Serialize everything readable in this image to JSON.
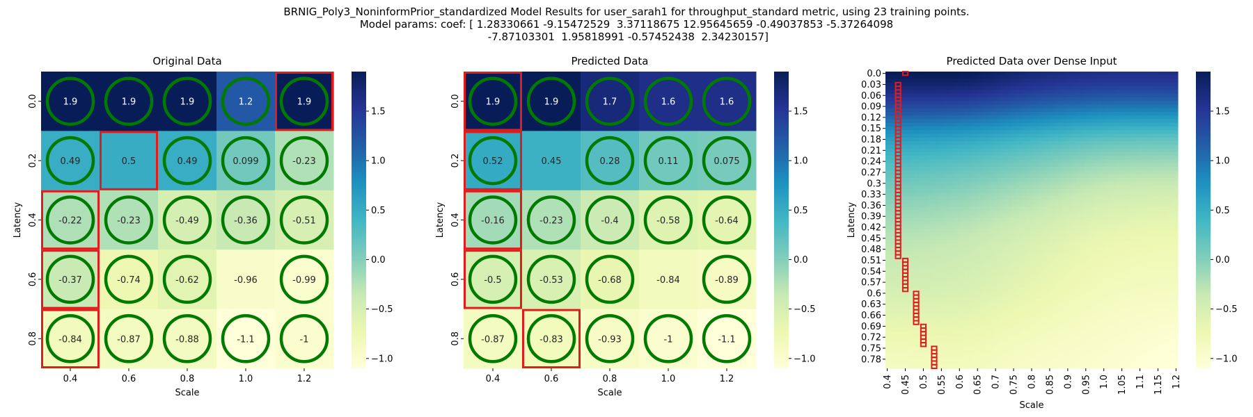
{
  "figure": {
    "title_lines": [
      "BRNIG_Poly3_NoninformPrior_standardized Model Results for user_sarah1 for throughput_standard metric, using 23 training points.",
      "Model params: coef: [ 1.28330661 -9.15472529  3.37118675 12.95645659 -0.49037853 -5.37264098",
      " -7.87103301  1.95818991 -0.57452438  2.34230157]"
    ]
  },
  "chart_data": [
    {
      "type": "heatmap",
      "title": "Original Data",
      "xlabel": "Scale",
      "ylabel": "Latency",
      "x_ticks": [
        "0.4",
        "0.6",
        "0.8",
        "1.0",
        "1.2"
      ],
      "y_ticks": [
        "0.0",
        "0.2",
        "0.4",
        "0.6",
        "0.8"
      ],
      "values": [
        [
          1.9,
          1.9,
          1.9,
          1.2,
          1.9
        ],
        [
          0.49,
          0.5,
          0.49,
          0.099,
          -0.23
        ],
        [
          -0.22,
          -0.23,
          -0.49,
          -0.36,
          -0.51
        ],
        [
          -0.37,
          -0.74,
          -0.62,
          -0.96,
          -0.99
        ],
        [
          -0.84,
          -0.87,
          -0.88,
          -1.1,
          -1
        ]
      ],
      "labels": [
        [
          "1.9",
          "1.9",
          "1.9",
          "1.2",
          "1.9"
        ],
        [
          "0.49",
          "0.5",
          "0.49",
          "0.099",
          "-0.23"
        ],
        [
          "-0.22",
          "-0.23",
          "-0.49",
          "-0.36",
          "-0.51"
        ],
        [
          "-0.37",
          "-0.74",
          "-0.62",
          "-0.96",
          "-0.99"
        ],
        [
          "-0.84",
          "-0.87",
          "-0.88",
          "-1.1",
          "-1"
        ]
      ],
      "circles": [
        [
          1,
          1,
          1,
          1,
          1
        ],
        [
          1,
          0,
          1,
          1,
          1
        ],
        [
          1,
          1,
          1,
          1,
          1
        ],
        [
          1,
          1,
          1,
          0,
          1
        ],
        [
          1,
          1,
          1,
          1,
          1
        ]
      ],
      "red_boxes": [
        {
          "row": 0,
          "col": 4
        },
        {
          "row": 1,
          "col": 1
        },
        {
          "row": 2,
          "col": 0
        },
        {
          "row": 3,
          "col": 0
        },
        {
          "row": 4,
          "col": 0
        }
      ],
      "colorbar": {
        "ticks": [
          1.5,
          1.0,
          0.5,
          0.0,
          -0.5,
          -1.0
        ],
        "tick_labels": [
          "1.5",
          "1.0",
          "0.5",
          "0.0",
          "−0.5",
          "−1.0"
        ]
      }
    },
    {
      "type": "heatmap",
      "title": "Predicted Data",
      "xlabel": "Scale",
      "ylabel": "Latency",
      "x_ticks": [
        "0.4",
        "0.6",
        "0.8",
        "1.0",
        "1.2"
      ],
      "y_ticks": [
        "0.0",
        "0.2",
        "0.4",
        "0.6",
        "0.8"
      ],
      "values": [
        [
          1.9,
          1.9,
          1.7,
          1.6,
          1.6
        ],
        [
          0.52,
          0.45,
          0.28,
          0.11,
          0.075
        ],
        [
          -0.16,
          -0.23,
          -0.4,
          -0.58,
          -0.64
        ],
        [
          -0.5,
          -0.53,
          -0.68,
          -0.84,
          -0.89
        ],
        [
          -0.87,
          -0.83,
          -0.93,
          -1,
          -1.1
        ]
      ],
      "labels": [
        [
          "1.9",
          "1.9",
          "1.7",
          "1.6",
          "1.6"
        ],
        [
          "0.52",
          "0.45",
          "0.28",
          "0.11",
          "0.075"
        ],
        [
          "-0.16",
          "-0.23",
          "-0.4",
          "-0.58",
          "-0.64"
        ],
        [
          "-0.5",
          "-0.53",
          "-0.68",
          "-0.84",
          "-0.89"
        ],
        [
          "-0.87",
          "-0.83",
          "-0.93",
          "-1",
          "-1.1"
        ]
      ],
      "circles": [
        [
          1,
          1,
          1,
          1,
          1
        ],
        [
          1,
          0,
          1,
          1,
          1
        ],
        [
          1,
          1,
          1,
          1,
          1
        ],
        [
          1,
          1,
          1,
          0,
          1
        ],
        [
          1,
          1,
          1,
          1,
          1
        ]
      ],
      "red_boxes": [
        {
          "row": 0,
          "col": 0
        },
        {
          "row": 1,
          "col": 0
        },
        {
          "row": 2,
          "col": 0
        },
        {
          "row": 3,
          "col": 0
        },
        {
          "row": 4,
          "col": 1
        }
      ],
      "colorbar": {
        "ticks": [
          1.5,
          1.0,
          0.5,
          0.0,
          -0.5,
          -1.0
        ],
        "tick_labels": [
          "1.5",
          "1.0",
          "0.5",
          "0.0",
          "−0.5",
          "−1.0"
        ]
      }
    },
    {
      "type": "heatmap",
      "title": "Predicted Data over Dense Input",
      "xlabel": "Scale",
      "ylabel": "Latency",
      "x_ticks": [
        "0.4",
        "0.45",
        "0.5",
        "0.55",
        "0.6",
        "0.65",
        "0.7",
        "0.75",
        "0.8",
        "0.85",
        "0.9",
        "0.95",
        "1.0",
        "1.05",
        "1.1",
        "1.15",
        "1.2"
      ],
      "y_ticks": [
        "0.0",
        "0.03",
        "0.06",
        "0.09",
        "0.12",
        "0.15",
        "0.18",
        "0.21",
        "0.24",
        "0.27",
        "0.3",
        "0.33",
        "0.36",
        "0.39",
        "0.42",
        "0.45",
        "0.48",
        "0.51",
        "0.54",
        "0.57",
        "0.6",
        "0.63",
        "0.66",
        "0.69",
        "0.72",
        "0.75",
        "0.78"
      ],
      "x_range": [
        0.4,
        1.2
      ],
      "y_range": [
        0.0,
        0.8
      ],
      "value_model": "bicubic interpolation of the 5x5 Predicted Data grid",
      "red_path": [
        {
          "y": 0.0,
          "x": 0.45
        },
        {
          "y": 0.03,
          "x": 0.43
        },
        {
          "y": 0.06,
          "x": 0.43
        },
        {
          "y": 0.09,
          "x": 0.43
        },
        {
          "y": 0.12,
          "x": 0.43
        },
        {
          "y": 0.15,
          "x": 0.43
        },
        {
          "y": 0.18,
          "x": 0.43
        },
        {
          "y": 0.21,
          "x": 0.43
        },
        {
          "y": 0.24,
          "x": 0.43
        },
        {
          "y": 0.27,
          "x": 0.43
        },
        {
          "y": 0.3,
          "x": 0.43
        },
        {
          "y": 0.33,
          "x": 0.43
        },
        {
          "y": 0.36,
          "x": 0.43
        },
        {
          "y": 0.39,
          "x": 0.43
        },
        {
          "y": 0.42,
          "x": 0.43
        },
        {
          "y": 0.45,
          "x": 0.43
        },
        {
          "y": 0.48,
          "x": 0.43
        },
        {
          "y": 0.51,
          "x": 0.45
        },
        {
          "y": 0.54,
          "x": 0.45
        },
        {
          "y": 0.57,
          "x": 0.45
        },
        {
          "y": 0.6,
          "x": 0.48
        },
        {
          "y": 0.63,
          "x": 0.48
        },
        {
          "y": 0.66,
          "x": 0.48
        },
        {
          "y": 0.69,
          "x": 0.5
        },
        {
          "y": 0.72,
          "x": 0.5
        },
        {
          "y": 0.75,
          "x": 0.53
        },
        {
          "y": 0.78,
          "x": 0.53
        }
      ],
      "colorbar": {
        "ticks": [
          1.5,
          1.0,
          0.5,
          0.0,
          -0.5,
          -1.0
        ],
        "tick_labels": [
          "1.5",
          "1.0",
          "0.5",
          "0.0",
          "−0.5",
          "−1.0"
        ]
      }
    }
  ],
  "colormap": {
    "name": "YlGnBu",
    "vmin": -1.1,
    "vmax": 1.9,
    "stops": [
      "#ffffd9",
      "#edf8b1",
      "#c7e9b4",
      "#7fcdbb",
      "#41b6c4",
      "#1d91c0",
      "#225ea8",
      "#253494",
      "#081d58"
    ]
  },
  "colors": {
    "circle_stroke": "#007a00",
    "highlight_box": "#e01c1c"
  }
}
